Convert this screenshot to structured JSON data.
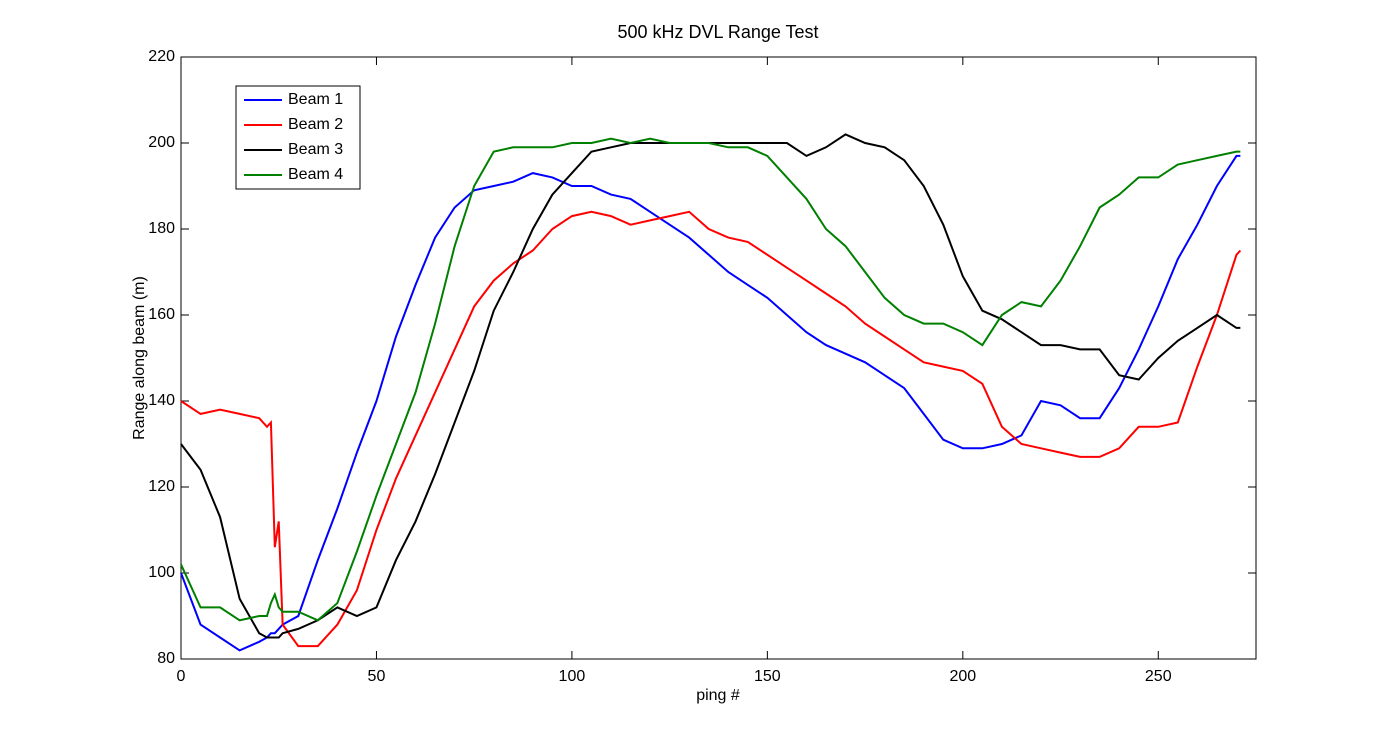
{
  "chart_data": {
    "type": "line",
    "title": "500 kHz DVL Range Test",
    "x_label": "ping #",
    "y_label": "Range along beam (m)",
    "x": [
      0,
      5,
      10,
      15,
      20,
      22,
      23,
      24,
      25,
      26,
      30,
      35,
      40,
      45,
      50,
      55,
      60,
      65,
      70,
      75,
      80,
      85,
      90,
      95,
      100,
      105,
      110,
      115,
      120,
      125,
      130,
      135,
      140,
      145,
      150,
      155,
      160,
      165,
      170,
      175,
      180,
      185,
      190,
      195,
      200,
      205,
      210,
      215,
      220,
      225,
      230,
      235,
      240,
      245,
      250,
      255,
      260,
      265,
      270,
      271
    ],
    "series": [
      {
        "name": "Beam 1",
        "color": "#0000ff",
        "values": [
          100,
          88,
          85,
          82,
          84,
          85,
          86,
          86,
          87,
          88,
          90,
          103,
          115,
          128,
          140,
          155,
          167,
          178,
          185,
          189,
          190,
          191,
          193,
          192,
          190,
          190,
          188,
          187,
          184,
          181,
          178,
          174,
          170,
          167,
          164,
          160,
          156,
          153,
          151,
          149,
          146,
          143,
          137,
          131,
          129,
          129,
          130,
          132,
          140,
          139,
          136,
          136,
          143,
          152,
          162,
          173,
          181,
          190,
          197,
          197
        ]
      },
      {
        "name": "Beam 2",
        "color": "#ff0000",
        "values": [
          140,
          137,
          138,
          137,
          136,
          134,
          135,
          106,
          112,
          88,
          83,
          83,
          88,
          96,
          110,
          122,
          132,
          142,
          152,
          162,
          168,
          172,
          175,
          180,
          183,
          184,
          183,
          181,
          182,
          183,
          184,
          180,
          178,
          177,
          174,
          171,
          168,
          165,
          162,
          158,
          155,
          152,
          149,
          148,
          147,
          144,
          134,
          130,
          129,
          128,
          127,
          127,
          129,
          134,
          134,
          135,
          148,
          160,
          174,
          175
        ]
      },
      {
        "name": "Beam 3",
        "color": "#000000",
        "values": [
          130,
          124,
          113,
          94,
          86,
          85,
          85,
          85,
          85,
          86,
          87,
          89,
          92,
          90,
          92,
          103,
          112,
          123,
          135,
          147,
          161,
          170,
          180,
          188,
          193,
          198,
          199,
          200,
          200,
          200,
          200,
          200,
          200,
          200,
          200,
          200,
          197,
          199,
          202,
          200,
          199,
          196,
          190,
          181,
          169,
          161,
          159,
          156,
          153,
          153,
          152,
          152,
          146,
          145,
          150,
          154,
          157,
          160,
          157,
          157
        ]
      },
      {
        "name": "Beam 4",
        "color": "#008000",
        "values": [
          102,
          92,
          92,
          89,
          90,
          90,
          93,
          95,
          92,
          91,
          91,
          89,
          93,
          105,
          118,
          130,
          142,
          158,
          176,
          190,
          198,
          199,
          199,
          199,
          200,
          200,
          201,
          200,
          201,
          200,
          200,
          200,
          199,
          199,
          197,
          192,
          187,
          180,
          176,
          170,
          164,
          160,
          158,
          158,
          156,
          153,
          160,
          163,
          162,
          168,
          176,
          185,
          188,
          192,
          192,
          195,
          196,
          197,
          198,
          198
        ]
      }
    ],
    "xlim": [
      0,
      275
    ],
    "ylim": [
      80,
      220
    ],
    "xticks": [
      0,
      50,
      100,
      150,
      200,
      250
    ],
    "yticks": [
      80,
      100,
      120,
      140,
      160,
      180,
      200,
      220
    ],
    "legend": "upper left"
  }
}
